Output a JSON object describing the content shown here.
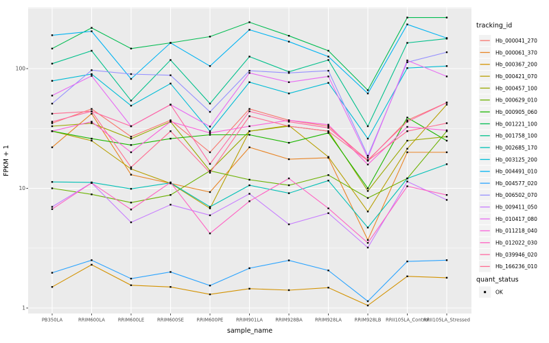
{
  "figure": {
    "background": "#ffffff",
    "panel_background": "#ebebeb",
    "gridline_color": "#ffffff",
    "tick_color": "#333333",
    "tick_label_color": "#4d4d4d",
    "axis_title_color": "#000000",
    "point_color": "#000000"
  },
  "legend": {
    "tracking_title": "tracking_id",
    "quant_title": "quant_status",
    "quant_items": [
      {
        "label": "OK",
        "shape": "black-square"
      }
    ],
    "key_fill": "#f2f2f2"
  },
  "chart_data": {
    "type": "line",
    "title": "",
    "xlabel": "sample_name",
    "ylabel": "FPKM + 1",
    "y_scale": "log10",
    "y_ticks": [
      1,
      10,
      100
    ],
    "y_minor_ticks": [
      3.162,
      31.62,
      316.2
    ],
    "ylim": [
      0.9,
      323
    ],
    "grid": true,
    "legend_position": "right",
    "categories": [
      "PB350LA",
      "RRIM600LA",
      "RRIM600LE",
      "RRIM600SE",
      "RRIM600PE",
      "RRIM901LA",
      "RRIM928BA",
      "RRIM928LA",
      "RRIM928LB",
      "RRII105LA_Control",
      "RRII105LA_Stressed"
    ],
    "series": [
      {
        "name": "Hb_000041_270",
        "color": "#F8766D",
        "values": [
          35,
          46,
          27,
          37,
          20,
          46,
          37,
          33,
          17,
          37,
          52
        ]
      },
      {
        "name": "Hb_000061_370",
        "color": "#E88526",
        "values": [
          22,
          42,
          13,
          11,
          9.3,
          22,
          17.5,
          18,
          3.7,
          20,
          20
        ]
      },
      {
        "name": "Hb_000367_200",
        "color": "#D39200",
        "values": [
          1.5,
          2.3,
          1.55,
          1.5,
          1.3,
          1.45,
          1.41,
          1.48,
          1.05,
          1.84,
          1.79
        ]
      },
      {
        "name": "Hb_000421_070",
        "color": "#B79F00",
        "values": [
          30,
          25,
          14.5,
          11,
          6.8,
          30,
          33.5,
          18.3,
          6.4,
          21.4,
          50
        ]
      },
      {
        "name": "Hb_000457_100",
        "color": "#99A800",
        "values": [
          33,
          35,
          26,
          36,
          14,
          30,
          33,
          30,
          9.5,
          25,
          27
        ]
      },
      {
        "name": "Hb_000629_010",
        "color": "#6BB100",
        "values": [
          10,
          8.9,
          7.6,
          8.8,
          14,
          11.8,
          10.6,
          12.9,
          8.3,
          12.1,
          30
        ]
      },
      {
        "name": "Hb_000905_060",
        "color": "#1CB700",
        "values": [
          30,
          26,
          23,
          26,
          28,
          28,
          24,
          29,
          10,
          39,
          25
        ]
      },
      {
        "name": "Hb_001221_100",
        "color": "#00BC51",
        "values": [
          147,
          219,
          147,
          164,
          185,
          244,
          188,
          141,
          66,
          267,
          267
        ]
      },
      {
        "name": "Hb_001758_100",
        "color": "#00C08B",
        "values": [
          110,
          141,
          54,
          118,
          51,
          126,
          94,
          118,
          33,
          164,
          178
        ]
      },
      {
        "name": "Hb_002685_170",
        "color": "#00C0B6",
        "values": [
          11.3,
          11.2,
          9.9,
          11.1,
          7.0,
          10.6,
          9.1,
          11.6,
          4.7,
          12.1,
          15.9
        ]
      },
      {
        "name": "Hb_003125_200",
        "color": "#00BCD6",
        "values": [
          79,
          90,
          49,
          75,
          30,
          77,
          62,
          76,
          26,
          101,
          105
        ]
      },
      {
        "name": "Hb_004491_010",
        "color": "#00B3F2",
        "values": [
          190,
          205,
          82,
          164,
          105,
          211,
          168,
          126,
          62,
          234,
          180
        ]
      },
      {
        "name": "Hb_004577_020",
        "color": "#29A3FF",
        "values": [
          1.97,
          2.51,
          1.76,
          2.0,
          1.54,
          2.15,
          2.5,
          2.06,
          1.14,
          2.45,
          2.51
        ]
      },
      {
        "name": "Hb_006502_070",
        "color": "#9590FF",
        "values": [
          51,
          97,
          90,
          88,
          43.5,
          96,
          92,
          96,
          18.7,
          113,
          137
        ]
      },
      {
        "name": "Hb_009411_050",
        "color": "#C77CFF",
        "values": [
          7.0,
          11.1,
          5.2,
          7.3,
          5.95,
          9,
          5,
          6.2,
          3.2,
          11.4,
          8.0
        ]
      },
      {
        "name": "Hb_010417_080",
        "color": "#E76BF3",
        "values": [
          59.5,
          87,
          33,
          50,
          32.8,
          92,
          77,
          86,
          18,
          117,
          86
        ]
      },
      {
        "name": "Hb_011218_040",
        "color": "#FA62DB",
        "values": [
          30,
          36,
          20,
          36,
          29,
          33,
          37,
          34,
          15.8,
          32.6,
          30.5
        ]
      },
      {
        "name": "Hb_012022_030",
        "color": "#FF61C3",
        "values": [
          6.7,
          11.1,
          6.65,
          11.2,
          4.2,
          7.8,
          12.1,
          6.8,
          3.5,
          10.4,
          8.8
        ]
      },
      {
        "name": "Hb_039946_020",
        "color": "#FF68A1",
        "values": [
          36,
          44,
          33,
          50,
          16,
          44,
          36,
          32,
          17.2,
          36,
          52
        ]
      },
      {
        "name": "Hb_166236_010",
        "color": "#FF6C91",
        "values": [
          42,
          44,
          15,
          30,
          13.5,
          40,
          33,
          30,
          17,
          30,
          35
        ]
      }
    ]
  }
}
